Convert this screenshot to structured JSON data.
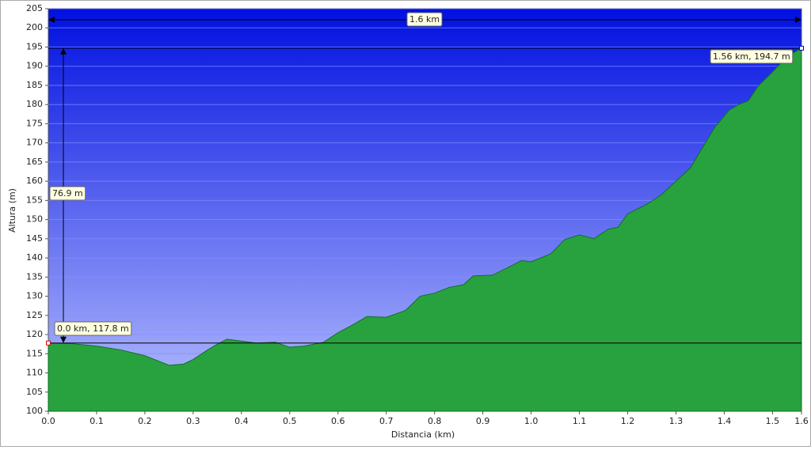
{
  "chart_data": {
    "type": "area",
    "x_label": "Distancia  (km)",
    "y_label": "Altura (m)",
    "x": [
      0,
      0.05,
      0.1,
      0.15,
      0.2,
      0.25,
      0.28,
      0.3,
      0.33,
      0.35,
      0.37,
      0.4,
      0.43,
      0.47,
      0.5,
      0.53,
      0.57,
      0.6,
      0.63,
      0.66,
      0.7,
      0.74,
      0.77,
      0.8,
      0.83,
      0.86,
      0.88,
      0.92,
      0.96,
      0.98,
      1.0,
      1.04,
      1.07,
      1.1,
      1.13,
      1.16,
      1.18,
      1.2,
      1.24,
      1.27,
      1.3,
      1.33,
      1.36,
      1.38,
      1.41,
      1.43,
      1.45,
      1.47,
      1.5,
      1.53,
      1.56
    ],
    "series": [
      {
        "name": "Altura",
        "color": "#22a63c",
        "values": [
          117.8,
          117.6,
          117.0,
          116.0,
          114.5,
          112.0,
          112.3,
          113.5,
          116.0,
          117.5,
          118.8,
          118.3,
          117.8,
          118.0,
          116.7,
          117.0,
          118.0,
          120.5,
          122.5,
          124.7,
          124.5,
          126.3,
          130.0,
          130.8,
          132.3,
          133.0,
          135.3,
          135.5,
          138.0,
          139.3,
          139.0,
          141.0,
          144.8,
          146.0,
          145.0,
          147.5,
          148.0,
          151.5,
          154.0,
          156.5,
          160.0,
          163.5,
          169.8,
          174.0,
          178.5,
          180.0,
          181.0,
          184.8,
          188.5,
          192.5,
          194.7
        ]
      }
    ],
    "xlim": [
      0,
      1.56
    ],
    "ylim": [
      100,
      205
    ],
    "xticks": [
      {
        "value": 0,
        "label": "0.0"
      },
      0.1,
      0.2,
      0.3,
      0.4,
      0.5,
      0.6,
      0.7,
      0.8,
      0.9,
      {
        "value": 1,
        "label": "1.0"
      },
      1.1,
      1.2,
      1.3,
      1.4,
      1.5,
      {
        "value": 1.56,
        "label": "1.6"
      }
    ],
    "yticks": [
      100,
      105,
      110,
      115,
      120,
      125,
      130,
      135,
      140,
      145,
      150,
      155,
      160,
      165,
      170,
      175,
      180,
      185,
      190,
      195,
      200,
      205
    ],
    "grid": true,
    "annotations": {
      "span": "1.6 km",
      "rise": "76.9 m",
      "start": "0.0 km, 117.8 m",
      "end": "1.56 km, 194.7 m"
    }
  }
}
